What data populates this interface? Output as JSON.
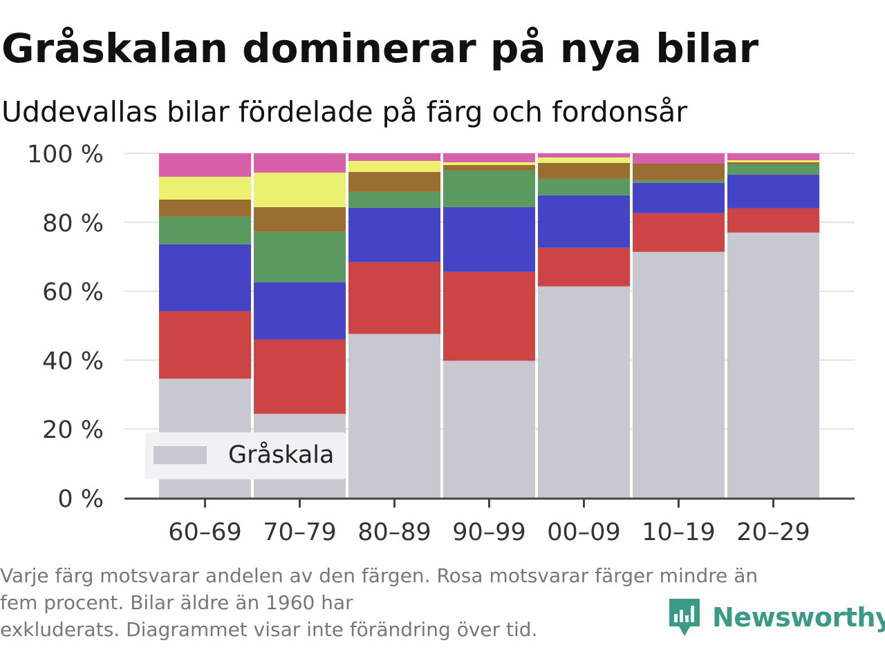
{
  "title": "Gråskalan dominerar på nya bilar",
  "subtitle": "Uddevallas bilar fördelade på färg och fordonsår",
  "footnote": {
    "line1": "Varje färg motsvarar andelen av den färgen. Rosa motsvarar färger mindre än",
    "line2": "fem procent. Bilar äldre än 1960 har",
    "line3": "exkluderats. Diagrammet visar inte förändring över tid."
  },
  "brand": {
    "name": "Newsworthy",
    "color": "#3a9a86",
    "icon": "newsworthy-logo-icon"
  },
  "chart_data": {
    "type": "bar",
    "stacked": true,
    "categories": [
      "60–69",
      "70–79",
      "80–89",
      "90–99",
      "00–09",
      "10–19",
      "20–29"
    ],
    "ylim": [
      0,
      100
    ],
    "yticks": [
      0,
      20,
      40,
      60,
      80,
      100
    ],
    "ytick_labels": [
      "0 %",
      "20 %",
      "40 %",
      "60 %",
      "80 %",
      "100 %"
    ],
    "grid": true,
    "legend": {
      "position": "bottom-left",
      "entries": [
        "Gråskala"
      ]
    },
    "series": [
      {
        "name": "Gråskala",
        "color": "#c8c8d0",
        "values": [
          34.6,
          24.4,
          47.6,
          39.8,
          61.4,
          71.4,
          77.0
        ]
      },
      {
        "color": "#cc4444",
        "values": [
          19.6,
          21.6,
          20.8,
          25.8,
          11.2,
          11.2,
          7.0
        ]
      },
      {
        "color": "#4444c4",
        "values": [
          19.4,
          16.6,
          15.8,
          18.8,
          15.2,
          8.8,
          9.8
        ]
      },
      {
        "color": "#5a9a60",
        "values": [
          8.0,
          14.6,
          4.6,
          10.6,
          4.8,
          0.8,
          3.0
        ]
      },
      {
        "color": "#9a6e30",
        "values": [
          5.0,
          7.2,
          5.8,
          1.6,
          4.6,
          4.8,
          0.6
        ]
      },
      {
        "color": "#ecf070",
        "values": [
          6.6,
          10.0,
          3.2,
          0.8,
          1.6,
          0.0,
          0.6
        ]
      },
      {
        "color": "#d860aa",
        "values": [
          6.8,
          5.6,
          2.2,
          2.6,
          1.2,
          3.0,
          2.0
        ]
      }
    ]
  }
}
